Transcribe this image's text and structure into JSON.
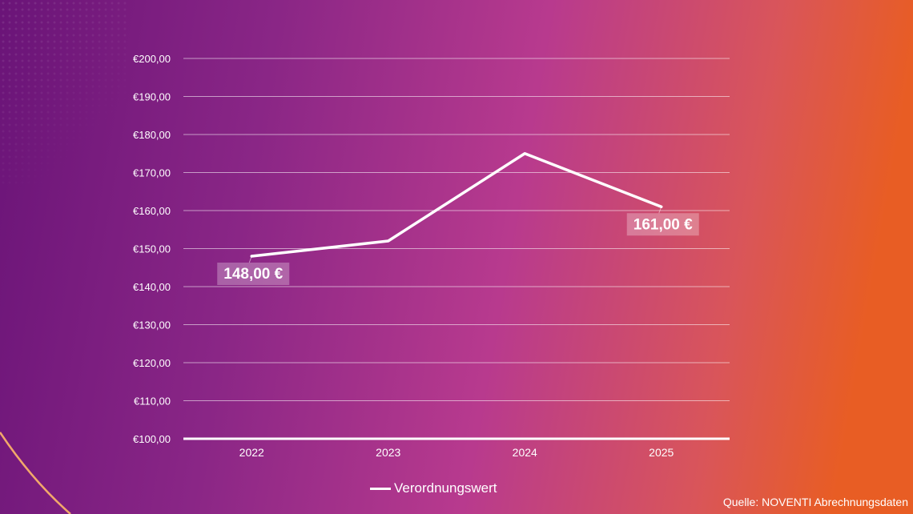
{
  "colors": {
    "line": "#ffffff",
    "grid": "rgba(255,255,255,0.55)",
    "label_box": "rgba(255,255,255,0.28)",
    "accent_orange": "#e85d24",
    "accent_purple": "#6a1478"
  },
  "source_text": "Quelle: NOVENTI Abrechnungsdaten",
  "chart_data": {
    "type": "line",
    "title": "",
    "xlabel": "",
    "ylabel": "",
    "categories": [
      "2022",
      "2023",
      "2024",
      "2025"
    ],
    "series": [
      {
        "name": "Verordnungswert",
        "values": [
          148,
          152,
          175,
          161
        ]
      }
    ],
    "ylim": [
      100,
      200
    ],
    "y_tick_step": 10,
    "y_tick_labels": [
      "€100,00",
      "€110,00",
      "€120,00",
      "€130,00",
      "€140,00",
      "€150,00",
      "€160,00",
      "€170,00",
      "€180,00",
      "€190,00",
      "€200,00"
    ],
    "data_labels": [
      {
        "index": 0,
        "text": "148,00 €"
      },
      {
        "index": 3,
        "text": "161,00 €"
      }
    ],
    "grid": true,
    "legend_position": "bottom"
  }
}
